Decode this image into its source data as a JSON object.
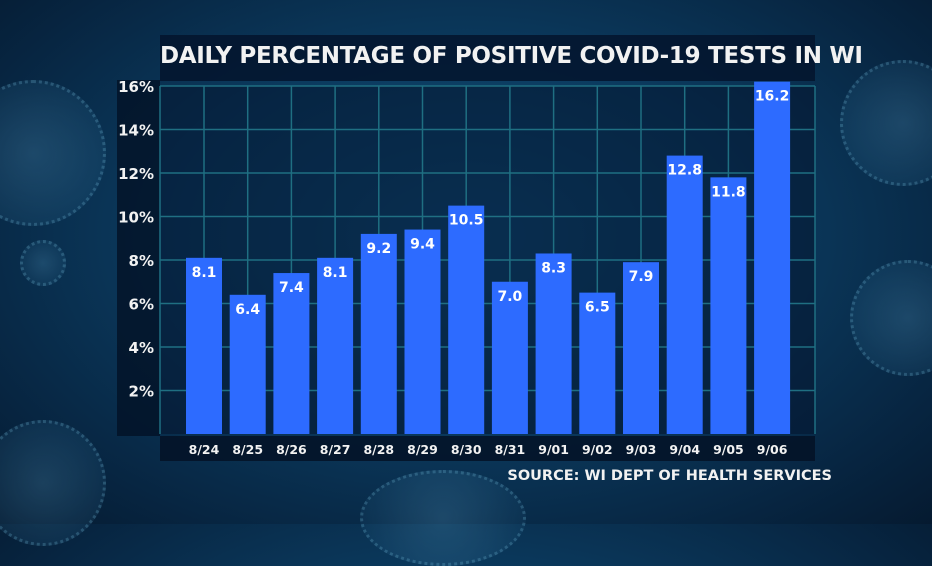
{
  "chart_data": {
    "type": "bar",
    "title": "DAILY PERCENTAGE OF POSITIVE COVID-19 TESTS IN WI",
    "categories": [
      "8/24",
      "8/25",
      "8/26",
      "8/27",
      "8/28",
      "8/29",
      "8/30",
      "8/31",
      "9/01",
      "9/02",
      "9/03",
      "9/04",
      "9/05",
      "9/06"
    ],
    "values": [
      8.1,
      6.4,
      7.4,
      8.1,
      9.2,
      9.4,
      10.5,
      7.0,
      8.3,
      6.5,
      7.9,
      12.8,
      11.8,
      16.2
    ],
    "value_labels": [
      "8.1",
      "6.4",
      "7.4",
      "8.1",
      "9.2",
      "9.4",
      "10.5",
      "7.0",
      "8.3",
      "6.5",
      "7.9",
      "12.8",
      "11.8",
      "16.2"
    ],
    "yticks": [
      2,
      4,
      6,
      8,
      10,
      12,
      14,
      16
    ],
    "ytick_labels": [
      "2%",
      "4%",
      "6%",
      "8%",
      "10%",
      "12%",
      "14%",
      "16%"
    ],
    "ylim": [
      0,
      16
    ],
    "xlabel": "",
    "ylabel": "",
    "grid": true,
    "bar_color": "#2d6bff",
    "grid_color": "#1f6f82"
  },
  "source": "SOURCE: WI DEPT OF HEALTH SERVICES"
}
